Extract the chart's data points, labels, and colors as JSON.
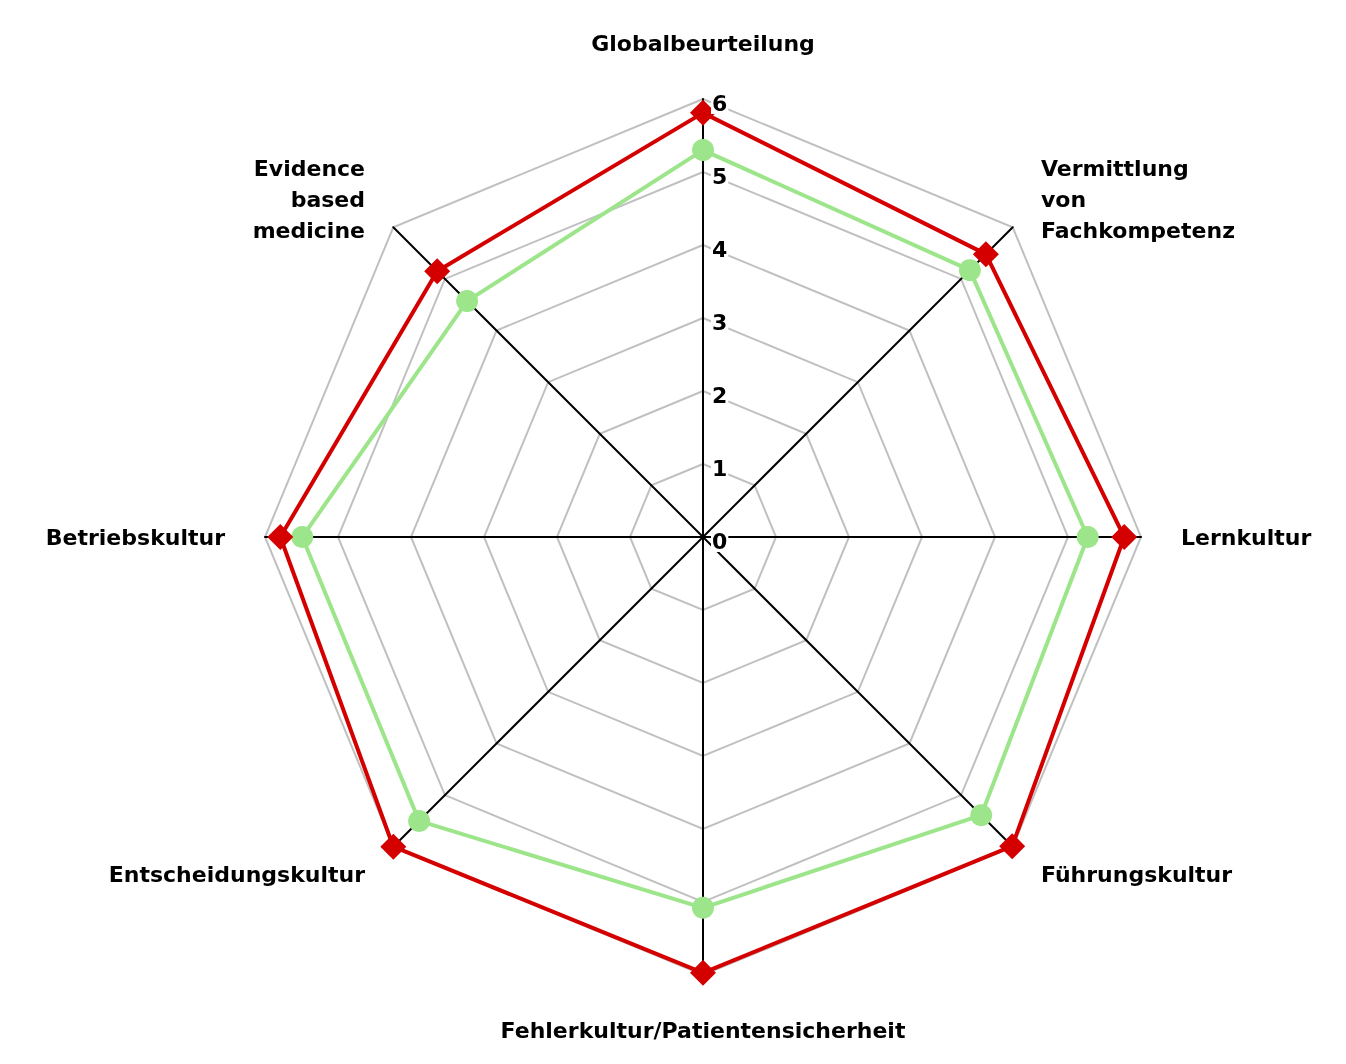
{
  "chart_data": {
    "type": "radar",
    "categories": [
      "Globalbeurteilung",
      "Vermittlung\nvon\nFachkompetenz",
      "Lernkultur",
      "Führungskultur",
      "Fehlerkultur/Patientensicherheit",
      "Entscheidungskultur",
      "Betriebskultur",
      "Evidence\nbased\nmedicine"
    ],
    "series": [
      {
        "color": "#9de58a",
        "marker": "circle",
        "values": [
          5.3,
          5.17,
          5.27,
          5.39,
          5.08,
          5.5,
          5.49,
          4.57
        ]
      },
      {
        "color": "#d40000",
        "marker": "diamond",
        "values": [
          5.81,
          5.48,
          5.77,
          5.99,
          5.97,
          6.0,
          5.79,
          5.15
        ]
      }
    ],
    "ylim": [
      0,
      6
    ],
    "yticks": [
      0,
      1,
      2,
      3,
      4,
      5,
      6
    ],
    "grid": true
  }
}
